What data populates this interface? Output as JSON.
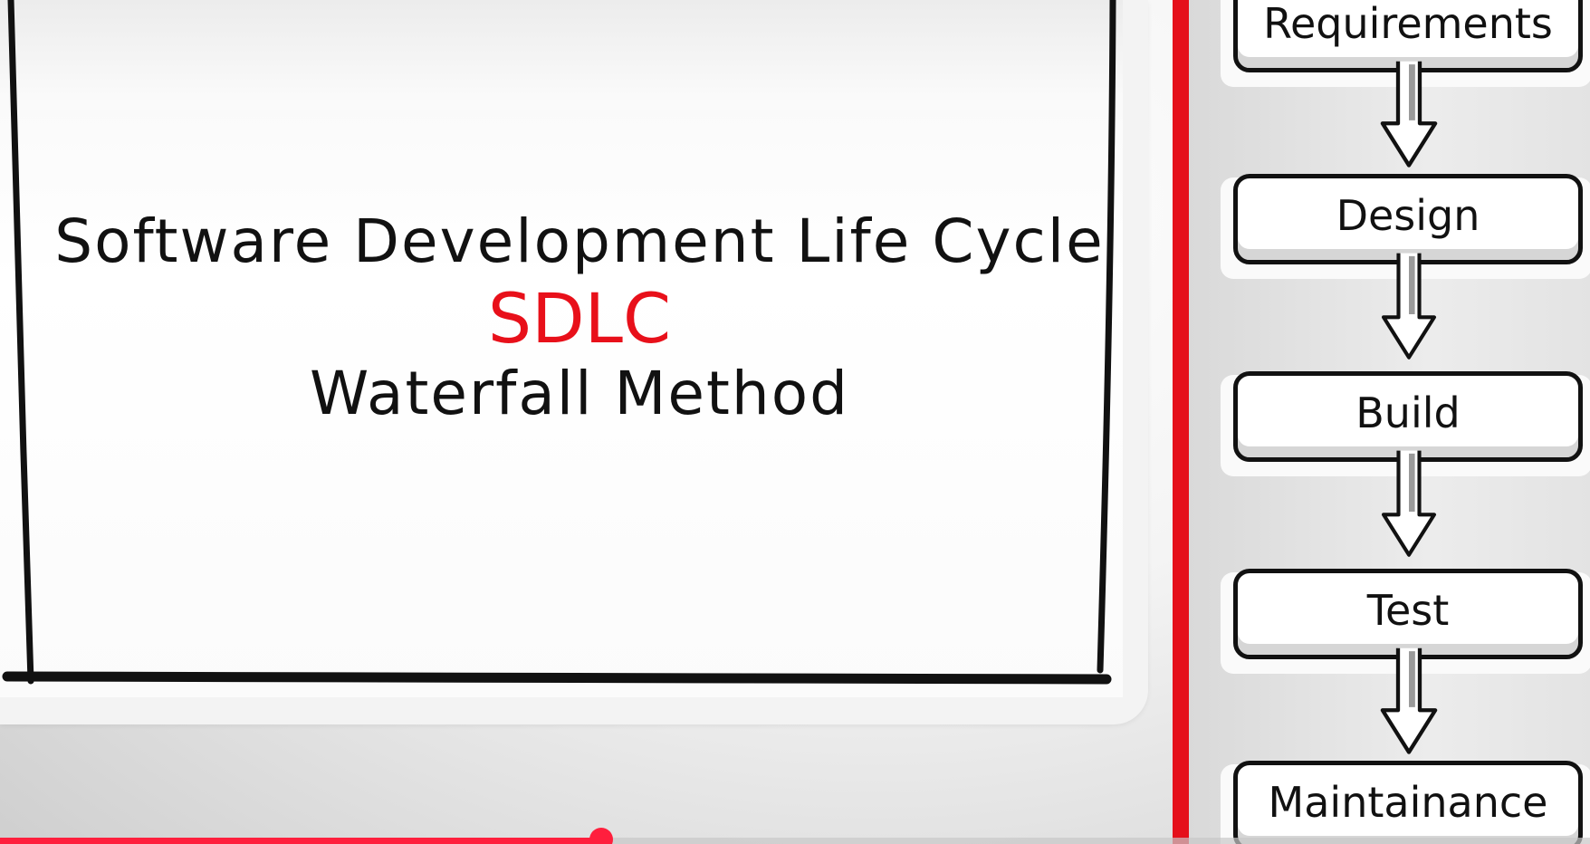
{
  "slide": {
    "title_line1": "Software Development Life Cycle",
    "title_line2": "SDLC",
    "title_line3": "Waterfall Method"
  },
  "waterfall_steps": [
    "Requirements",
    "Design",
    "Build",
    "Test",
    "Maintainance"
  ],
  "colors": {
    "accent_red": "#e5101b",
    "progress": "#ff1f3d",
    "ink": "#111111"
  },
  "player": {
    "progress_fraction": 0.378
  }
}
